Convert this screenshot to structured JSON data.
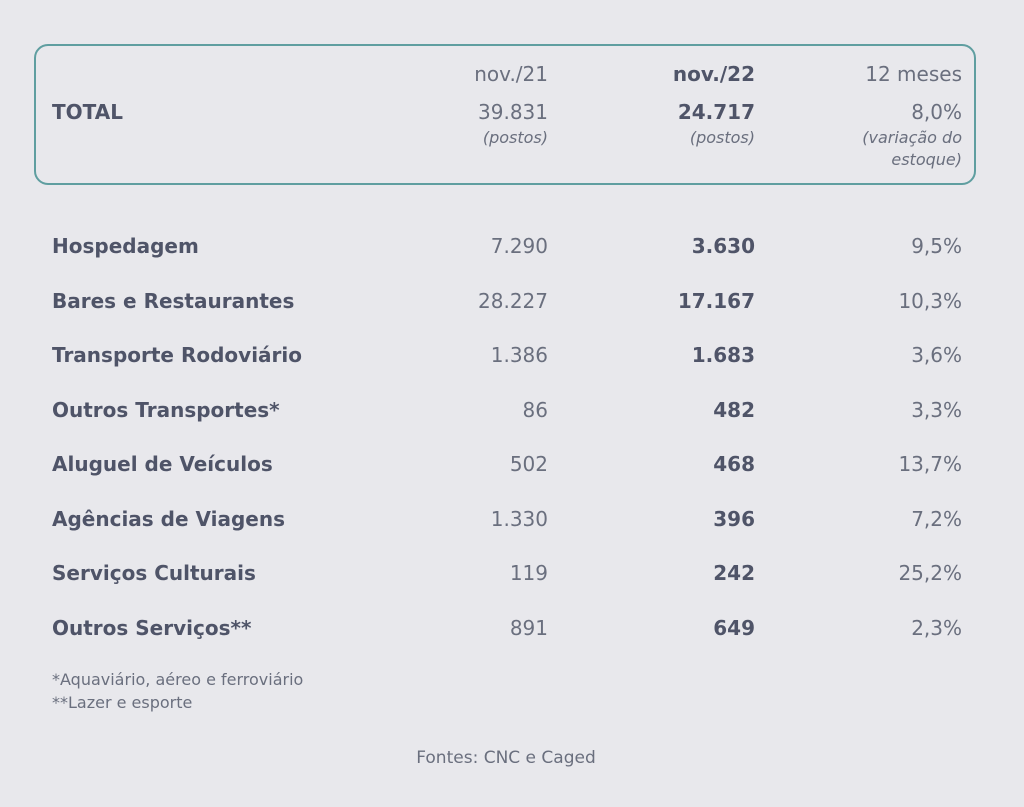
{
  "header": {
    "col1": "nov./21",
    "col2": "nov./22",
    "col3": "12 meses"
  },
  "total": {
    "label": "TOTAL",
    "v1": "39.831",
    "v2": "24.717",
    "v3": "8,0%",
    "u1": "(postos)",
    "u2": "(postos)",
    "u3_line1": "(variação do",
    "u3_line2": "estoque)"
  },
  "rows": [
    {
      "label": "Hospedagem",
      "v1": "7.290",
      "v2": "3.630",
      "v3": "9,5%"
    },
    {
      "label": "Bares e Restaurantes",
      "v1": "28.227",
      "v2": "17.167",
      "v3": "10,3%"
    },
    {
      "label": "Transporte Rodoviário",
      "v1": "1.386",
      "v2": "1.683",
      "v3": "3,6%"
    },
    {
      "label": "Outros Transportes*",
      "v1": "86",
      "v2": "482",
      "v3": "3,3%"
    },
    {
      "label": "Aluguel de Veículos",
      "v1": "502",
      "v2": "468",
      "v3": "13,7%"
    },
    {
      "label": "Agências de Viagens",
      "v1": "1.330",
      "v2": "396",
      "v3": "7,2%"
    },
    {
      "label": "Serviços Culturais",
      "v1": "119",
      "v2": "242",
      "v3": "25,2%"
    },
    {
      "label": "Outros Serviços**",
      "v1": "891",
      "v2": "649",
      "v3": "2,3%"
    }
  ],
  "notes": {
    "note1": "*Aquaviário, aéreo e ferroviário",
    "note2": "**Lazer e esporte"
  },
  "source": "Fontes: CNC e Caged",
  "colors": {
    "border": "#5f9ea0",
    "background": "#e8e8ec",
    "text": "#5c6170"
  }
}
